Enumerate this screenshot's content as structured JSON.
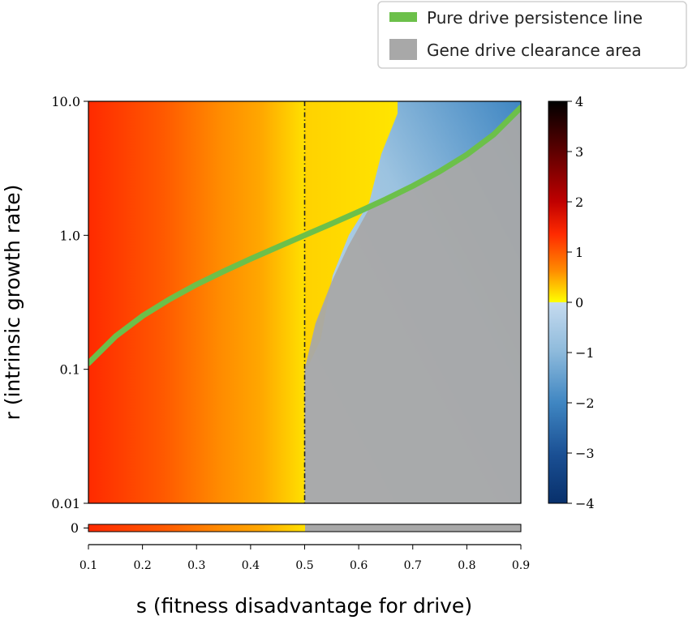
{
  "chart_data": {
    "type": "heatmap",
    "xlabel": "s (fitness disadvantage for drive)",
    "ylabel": "r (intrinsic growth rate)",
    "x_ticks": [
      "0.1",
      "0.2",
      "0.3",
      "0.4",
      "0.5",
      "0.6",
      "0.7",
      "0.8",
      "0.9"
    ],
    "y_ticks": [
      "10.0",
      "1.0",
      "0.1",
      "0.01"
    ],
    "y_scale": "log",
    "xlim": [
      0.1,
      0.9
    ],
    "ylim": [
      0.01,
      10.0
    ],
    "colorbar": {
      "ticks": [
        "4",
        "3",
        "2",
        "1",
        "0",
        "−1",
        "−2",
        "−3",
        "−4"
      ],
      "range": [
        -4,
        4
      ]
    },
    "strip": {
      "tick": "0",
      "split_at_s": 0.5
    },
    "reference_line": {
      "style": "dash-dot",
      "s": 0.5
    },
    "legend": {
      "placement": "top-right",
      "entries": [
        "Pure drive persistence line",
        "Gene drive clearance area"
      ]
    },
    "series": [
      {
        "name": "Pure drive persistence line",
        "color": "#6cc04a",
        "points": [
          [
            0.1,
            0.111
          ],
          [
            0.15,
            0.176
          ],
          [
            0.2,
            0.25
          ],
          [
            0.25,
            0.333
          ],
          [
            0.3,
            0.429
          ],
          [
            0.35,
            0.538
          ],
          [
            0.4,
            0.667
          ],
          [
            0.45,
            0.818
          ],
          [
            0.5,
            1.0
          ],
          [
            0.55,
            1.222
          ],
          [
            0.6,
            1.5
          ],
          [
            0.65,
            1.857
          ],
          [
            0.7,
            2.333
          ],
          [
            0.75,
            3.0
          ],
          [
            0.8,
            4.0
          ],
          [
            0.85,
            5.667
          ],
          [
            0.9,
            9.0
          ]
        ]
      },
      {
        "name": "Gene drive clearance area",
        "color": "#a8a8a8",
        "boundary_points": [
          [
            0.5,
            0.01
          ],
          [
            0.5,
            0.1
          ],
          [
            0.52,
            0.22
          ],
          [
            0.55,
            0.45
          ],
          [
            0.58,
            0.82
          ],
          [
            0.62,
            1.6
          ],
          [
            0.66,
            1.9
          ],
          [
            0.7,
            2.3
          ],
          [
            0.75,
            3.0
          ],
          [
            0.8,
            4.0
          ],
          [
            0.85,
            5.667
          ],
          [
            0.9,
            9.0
          ],
          [
            0.9,
            0.01
          ]
        ]
      }
    ]
  }
}
